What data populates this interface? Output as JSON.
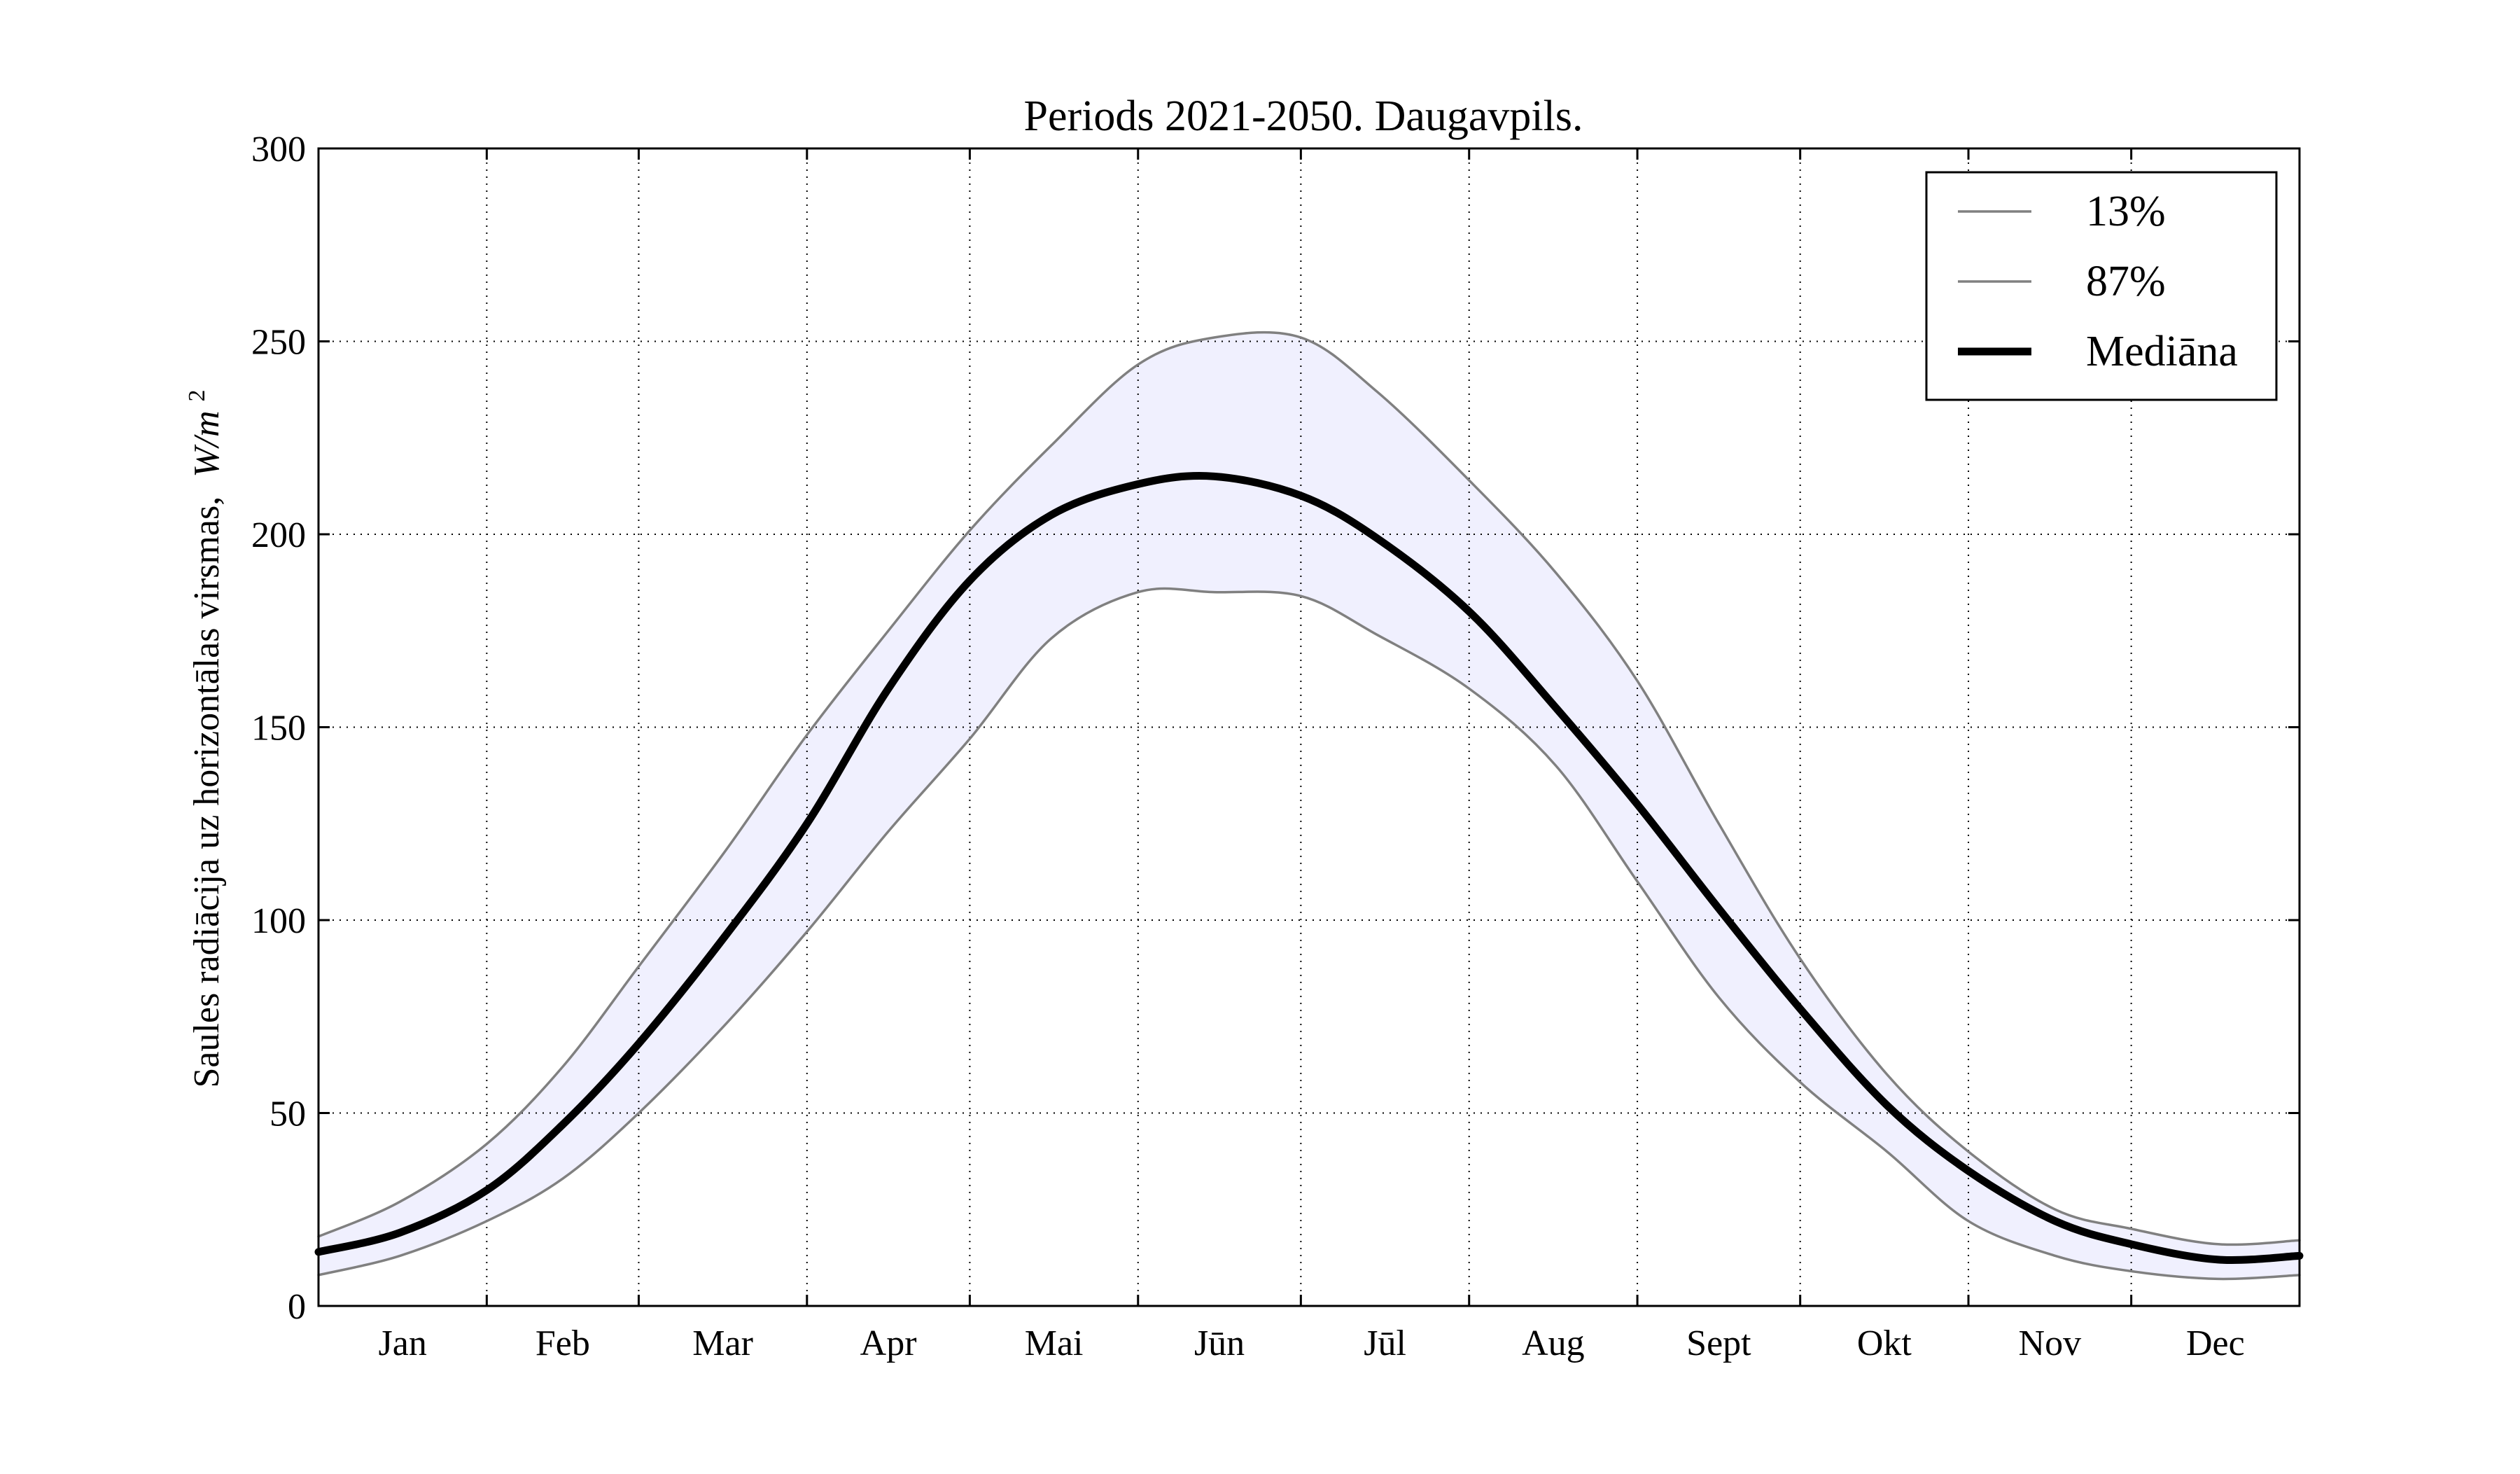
{
  "chart_data": {
    "type": "line",
    "title": "Periods 2021-2050. Daugavpils.",
    "ylabel": "Saules radiācija uz horizontālas virsmas,",
    "ylabel_unit_base": "W/m",
    "ylabel_unit_exp": "2",
    "xlabel": "",
    "ylim": [
      0,
      300
    ],
    "yticks": [
      0,
      50,
      100,
      150,
      200,
      250,
      300
    ],
    "xlim": [
      0,
      365
    ],
    "month_boundaries": [
      0,
      31,
      59,
      90,
      120,
      151,
      181,
      212,
      243,
      273,
      304,
      334,
      365
    ],
    "categories": [
      "Jan",
      "Feb",
      "Mar",
      "Apr",
      "Mai",
      "Jūn",
      "Jūl",
      "Aug",
      "Sept",
      "Okt",
      "Nov",
      "Dec"
    ],
    "grid": true,
    "legend_position": "top-right",
    "band_color": "#f0f0fe",
    "x": [
      0,
      15,
      31,
      45,
      59,
      75,
      90,
      105,
      120,
      135,
      151,
      165,
      181,
      195,
      212,
      228,
      243,
      258,
      273,
      289,
      304,
      320,
      334,
      350,
      365
    ],
    "series": [
      {
        "name": "13%",
        "color": "#808080",
        "role": "lower",
        "values": [
          8,
          13,
          22,
          33,
          50,
          73,
          97,
          123,
          147,
          173,
          185,
          185,
          184,
          174,
          160,
          140,
          110,
          80,
          58,
          40,
          22,
          13,
          9,
          7,
          8
        ]
      },
      {
        "name": "87%",
        "color": "#808080",
        "role": "upper",
        "values": [
          18,
          27,
          42,
          62,
          88,
          118,
          148,
          175,
          201,
          223,
          244,
          251,
          251,
          237,
          214,
          190,
          162,
          125,
          90,
          60,
          40,
          25,
          20,
          16,
          17
        ]
      },
      {
        "name": "Mediāna",
        "color": "#000000",
        "role": "median",
        "values": [
          14,
          19,
          30,
          47,
          68,
          96,
          125,
          160,
          188,
          205,
          213,
          215,
          210,
          199,
          180,
          155,
          130,
          103,
          77,
          52,
          35,
          22,
          16,
          12,
          13
        ]
      }
    ]
  }
}
